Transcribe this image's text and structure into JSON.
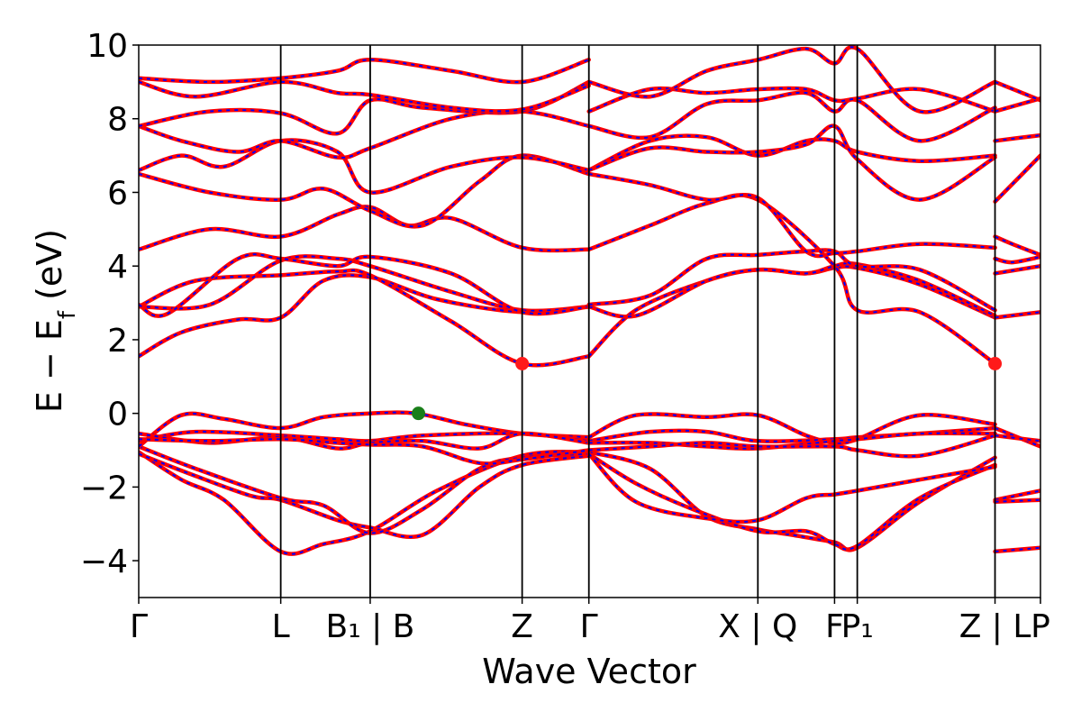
{
  "chart_data": {
    "type": "line",
    "title": "",
    "xlabel": "Wave Vector",
    "ylabel_parts": [
      "E − E",
      "f",
      " (eV)"
    ],
    "ylim": [
      -5,
      10
    ],
    "y_ticks": [
      -4,
      -2,
      0,
      2,
      4,
      6,
      8,
      10
    ],
    "y_tick_labels": [
      "−4",
      "−2",
      "0",
      "2",
      "4",
      "6",
      "8",
      "10"
    ],
    "path_length": 6.35,
    "k_points": [
      {
        "label": "Γ",
        "k": 0.0
      },
      {
        "label": "L",
        "k": 1.0
      },
      {
        "label": "B₁ | B",
        "k": 1.63
      },
      {
        "label": "Z",
        "k": 2.7
      },
      {
        "label": "Γ",
        "k": 3.17
      },
      {
        "label": "X | Q",
        "k": 4.36
      },
      {
        "label": "F",
        "k": 4.9
      },
      {
        "label": "P₁",
        "k": 5.06
      },
      {
        "label": "Z | L",
        "k": 6.03
      },
      {
        "label": "P",
        "k": 6.35
      }
    ],
    "band_colors": {
      "primary": "#ff0000",
      "overlay": "#0000ff"
    },
    "grid": false,
    "bands": [
      {
        "k": [
          0.0,
          0.3,
          0.6,
          1.0,
          1.3,
          1.63,
          2.1,
          2.7,
          3.17
        ],
        "e": [
          -1.05,
          -1.8,
          -2.35,
          -3.75,
          -3.55,
          -3.2,
          -2.1,
          -1.15,
          -1.05
        ]
      },
      {
        "k": [
          0.0,
          0.4,
          0.8,
          1.0,
          1.4,
          1.63,
          2.0,
          2.4,
          2.7,
          3.17
        ],
        "e": [
          -1.1,
          -1.7,
          -2.25,
          -2.35,
          -2.9,
          -3.1,
          -3.3,
          -2.0,
          -1.4,
          -1.15
        ]
      },
      {
        "k": [
          0.0,
          0.4,
          1.0,
          1.3,
          1.63,
          2.0,
          2.4,
          2.7,
          3.17
        ],
        "e": [
          -0.9,
          -1.5,
          -2.3,
          -2.5,
          -3.25,
          -2.6,
          -1.5,
          -1.2,
          -1.1
        ]
      },
      {
        "k": [
          0.0,
          0.3,
          0.6,
          1.0,
          1.3,
          1.63,
          1.95,
          2.3,
          2.7,
          3.17
        ],
        "e": [
          -0.9,
          -0.05,
          -0.15,
          -0.4,
          -0.1,
          0.0,
          0.0,
          -0.3,
          -0.55,
          -0.65
        ]
      },
      {
        "k": [
          0.0,
          0.4,
          1.0,
          1.4,
          1.63,
          2.0,
          2.7,
          3.17
        ],
        "e": [
          -0.75,
          -0.5,
          -0.6,
          -0.7,
          -0.75,
          -0.6,
          -0.55,
          -0.75
        ]
      },
      {
        "k": [
          0.0,
          0.5,
          1.0,
          1.4,
          1.63,
          2.0,
          2.4,
          2.7,
          3.17
        ],
        "e": [
          -0.55,
          -0.8,
          -0.65,
          -0.95,
          -0.8,
          -0.75,
          -0.95,
          -0.55,
          -0.8
        ]
      },
      {
        "k": [
          0.0,
          0.5,
          1.0,
          1.4,
          1.63,
          2.0,
          2.4,
          2.7,
          3.17
        ],
        "e": [
          -0.7,
          -0.75,
          -0.7,
          -0.8,
          -0.85,
          -0.9,
          -1.35,
          -1.25,
          -1.0
        ]
      },
      {
        "k": [
          0.0,
          0.3,
          0.7,
          1.0,
          1.3,
          1.63,
          2.1,
          2.7,
          3.17
        ],
        "e": [
          1.55,
          2.2,
          2.55,
          2.6,
          3.6,
          3.7,
          3.1,
          2.75,
          2.9
        ]
      },
      {
        "k": [
          0.0,
          0.4,
          1.0,
          1.4,
          1.63,
          2.2,
          2.7,
          3.17
        ],
        "e": [
          2.9,
          3.6,
          3.75,
          3.85,
          3.75,
          2.5,
          1.35,
          1.55
        ]
      },
      {
        "k": [
          0.0,
          0.5,
          1.0,
          1.4,
          1.63,
          2.2,
          2.7,
          3.17
        ],
        "e": [
          2.9,
          2.95,
          4.15,
          4.2,
          4.0,
          3.3,
          2.8,
          2.9
        ]
      },
      {
        "k": [
          0.0,
          0.2,
          0.7,
          1.0,
          1.4,
          1.63,
          2.2,
          2.7,
          3.17
        ],
        "e": [
          2.95,
          2.7,
          4.2,
          4.2,
          4.0,
          4.25,
          3.8,
          2.75,
          2.9
        ]
      },
      {
        "k": [
          0.0,
          0.5,
          1.0,
          1.4,
          1.63,
          1.9,
          2.2,
          2.7,
          3.17
        ],
        "e": [
          4.45,
          5.0,
          4.8,
          5.4,
          5.6,
          5.1,
          5.3,
          4.5,
          4.45
        ]
      },
      {
        "k": [
          0.0,
          0.5,
          1.0,
          1.3,
          1.63,
          2.0,
          2.4,
          2.7,
          3.17
        ],
        "e": [
          6.5,
          6.0,
          5.8,
          6.1,
          5.5,
          5.1,
          6.3,
          7.0,
          6.5
        ]
      },
      {
        "k": [
          0.0,
          0.3,
          0.6,
          1.0,
          1.4,
          1.63,
          2.2,
          2.7,
          3.17
        ],
        "e": [
          6.6,
          7.0,
          6.7,
          7.4,
          7.1,
          6.0,
          6.7,
          6.95,
          6.6
        ]
      },
      {
        "k": [
          0.0,
          0.3,
          0.7,
          1.0,
          1.4,
          1.63,
          2.2,
          2.7,
          3.17
        ],
        "e": [
          7.8,
          7.4,
          7.1,
          7.4,
          6.95,
          7.2,
          8.0,
          8.2,
          7.8
        ]
      },
      {
        "k": [
          0.0,
          0.5,
          1.0,
          1.4,
          1.63,
          2.0,
          2.7,
          3.17
        ],
        "e": [
          7.8,
          8.2,
          8.15,
          7.6,
          8.5,
          8.3,
          8.2,
          9.0
        ]
      },
      {
        "k": [
          0.0,
          0.4,
          1.0,
          1.4,
          1.63,
          2.2,
          2.7,
          3.17
        ],
        "e": [
          9.0,
          8.6,
          9.0,
          8.7,
          8.65,
          8.3,
          8.25,
          8.9
        ]
      },
      {
        "k": [
          0.0,
          0.5,
          1.0,
          1.4,
          1.63,
          2.2,
          2.7,
          3.17
        ],
        "e": [
          9.1,
          9.0,
          9.1,
          9.3,
          9.6,
          9.3,
          9.0,
          9.6
        ]
      },
      {
        "k": [
          3.17,
          3.6,
          4.0,
          4.36,
          4.6,
          4.9,
          5.06,
          5.5,
          6.03
        ],
        "e": [
          -1.05,
          -1.5,
          -2.8,
          -3.15,
          -3.3,
          -3.5,
          -3.65,
          -2.4,
          -1.2
        ]
      },
      {
        "k": [
          3.17,
          3.5,
          3.9,
          4.36,
          4.7,
          4.9,
          5.06,
          5.5,
          6.03
        ],
        "e": [
          -1.1,
          -1.9,
          -2.6,
          -3.2,
          -3.2,
          -3.55,
          -3.6,
          -2.3,
          -1.4
        ]
      },
      {
        "k": [
          3.17,
          3.5,
          4.0,
          4.36,
          4.7,
          4.9,
          5.06,
          5.5,
          6.03
        ],
        "e": [
          -1.1,
          -2.4,
          -2.85,
          -2.9,
          -2.3,
          -2.2,
          -2.1,
          -1.8,
          -1.45
        ]
      },
      {
        "k": [
          3.17,
          3.5,
          4.0,
          4.36,
          4.7,
          4.9,
          5.06,
          5.5,
          6.03
        ],
        "e": [
          -0.65,
          -0.05,
          -0.1,
          -0.05,
          -0.6,
          -0.8,
          -0.7,
          -0.05,
          -0.3
        ]
      },
      {
        "k": [
          3.17,
          3.6,
          4.0,
          4.36,
          4.9,
          5.06,
          5.5,
          6.03
        ],
        "e": [
          -0.75,
          -0.5,
          -0.5,
          -0.75,
          -0.7,
          -0.65,
          -0.55,
          -0.4
        ]
      },
      {
        "k": [
          3.17,
          3.6,
          4.0,
          4.36,
          4.9,
          5.06,
          5.5,
          6.03
        ],
        "e": [
          -0.8,
          -0.8,
          -0.9,
          -0.95,
          -0.75,
          -0.7,
          -0.55,
          -0.55
        ]
      },
      {
        "k": [
          3.17,
          3.6,
          4.0,
          4.36,
          4.9,
          5.06,
          5.5,
          6.03
        ],
        "e": [
          -1.0,
          -0.9,
          -0.8,
          -0.9,
          -0.9,
          -1.0,
          -1.15,
          -0.6
        ]
      },
      {
        "k": [
          3.17,
          3.5,
          4.0,
          4.36,
          4.7,
          4.9,
          5.06,
          5.5,
          6.03
        ],
        "e": [
          1.55,
          2.8,
          3.6,
          3.9,
          3.8,
          3.95,
          3.95,
          3.5,
          2.6
        ]
      },
      {
        "k": [
          3.17,
          3.5,
          4.0,
          4.36,
          4.7,
          4.9,
          5.06,
          5.5,
          6.03
        ],
        "e": [
          2.9,
          2.65,
          3.6,
          3.9,
          3.8,
          4.0,
          4.05,
          3.6,
          2.65
        ]
      },
      {
        "k": [
          3.17,
          3.6,
          4.0,
          4.36,
          4.7,
          4.9,
          5.06,
          5.5,
          6.03
        ],
        "e": [
          2.95,
          3.2,
          4.2,
          4.3,
          4.4,
          4.4,
          4.0,
          3.9,
          2.8
        ]
      },
      {
        "k": [
          3.17,
          3.6,
          4.0,
          4.36,
          4.9,
          5.06,
          5.5,
          6.03
        ],
        "e": [
          4.45,
          5.1,
          5.7,
          5.8,
          4.0,
          2.8,
          2.75,
          1.35
        ]
      },
      {
        "k": [
          3.17,
          3.6,
          4.0,
          4.36,
          4.7,
          4.9,
          5.06,
          5.5,
          6.03
        ],
        "e": [
          6.5,
          6.2,
          5.8,
          5.85,
          4.4,
          4.35,
          4.4,
          4.6,
          4.5
        ]
      },
      {
        "k": [
          3.17,
          3.6,
          4.0,
          4.36,
          4.7,
          4.9,
          5.06,
          5.5,
          6.03
        ],
        "e": [
          6.6,
          7.4,
          7.5,
          7.0,
          7.4,
          7.4,
          7.1,
          6.85,
          7.0
        ]
      },
      {
        "k": [
          3.17,
          3.6,
          4.0,
          4.36,
          4.7,
          4.9,
          5.06,
          5.5,
          6.03
        ],
        "e": [
          6.6,
          7.2,
          7.1,
          7.1,
          7.3,
          7.8,
          6.9,
          5.8,
          6.95
        ]
      },
      {
        "k": [
          3.17,
          3.6,
          4.0,
          4.36,
          4.7,
          4.9,
          5.06,
          5.5,
          6.03
        ],
        "e": [
          7.8,
          7.5,
          8.4,
          8.5,
          8.7,
          8.2,
          8.5,
          7.4,
          8.3
        ]
      },
      {
        "k": [
          3.17,
          3.6,
          4.0,
          4.36,
          4.7,
          4.9,
          5.06,
          5.5,
          6.03
        ],
        "e": [
          8.2,
          8.8,
          8.7,
          8.8,
          8.8,
          8.5,
          8.55,
          8.8,
          8.2
        ]
      },
      {
        "k": [
          3.17,
          3.6,
          4.0,
          4.36,
          4.7,
          4.9,
          5.06,
          5.5,
          6.03
        ],
        "e": [
          9.0,
          8.6,
          9.3,
          9.6,
          9.9,
          9.5,
          9.9,
          8.2,
          9.0
        ]
      },
      {
        "k": [
          6.03,
          6.35
        ],
        "e": [
          -0.4,
          -0.9
        ]
      },
      {
        "k": [
          6.03,
          6.35
        ],
        "e": [
          -0.6,
          -0.75
        ]
      },
      {
        "k": [
          6.03,
          6.35
        ],
        "e": [
          -2.35,
          -2.1
        ]
      },
      {
        "k": [
          6.03,
          6.35
        ],
        "e": [
          -2.4,
          -2.35
        ]
      },
      {
        "k": [
          6.03,
          6.35
        ],
        "e": [
          -3.75,
          -3.65
        ]
      },
      {
        "k": [
          6.03,
          6.35
        ],
        "e": [
          2.6,
          2.75
        ]
      },
      {
        "k": [
          6.03,
          6.35
        ],
        "e": [
          3.8,
          4.0
        ]
      },
      {
        "k": [
          6.03,
          6.15,
          6.35
        ],
        "e": [
          4.2,
          4.1,
          4.25
        ]
      },
      {
        "k": [
          6.03,
          6.15,
          6.35
        ],
        "e": [
          4.8,
          4.6,
          4.3
        ]
      },
      {
        "k": [
          6.03,
          6.35
        ],
        "e": [
          5.75,
          7.0
        ]
      },
      {
        "k": [
          6.03,
          6.35
        ],
        "e": [
          7.4,
          7.55
        ]
      },
      {
        "k": [
          6.03,
          6.35
        ],
        "e": [
          8.2,
          8.55
        ]
      },
      {
        "k": [
          6.03,
          6.35
        ],
        "e": [
          9.0,
          8.5
        ]
      }
    ],
    "markers": [
      {
        "name": "valence-band-maximum",
        "k": 1.97,
        "e": 0.0,
        "color": "#1a7f1a"
      },
      {
        "name": "conduction-band-minimum",
        "k": 2.7,
        "e": 1.35,
        "color": "#ff1a1a"
      },
      {
        "name": "conduction-band-minimum",
        "k": 6.03,
        "e": 1.35,
        "color": "#ff1a1a"
      }
    ]
  }
}
